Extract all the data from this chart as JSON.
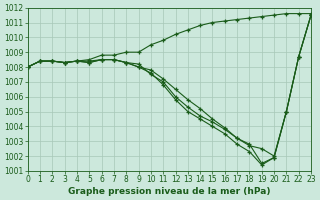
{
  "x": [
    0,
    1,
    2,
    3,
    4,
    5,
    6,
    7,
    8,
    9,
    10,
    11,
    12,
    13,
    14,
    15,
    16,
    17,
    18,
    19,
    20,
    21,
    22,
    23
  ],
  "series": [
    [
      1008.0,
      1008.4,
      1008.4,
      1008.3,
      1008.4,
      1008.5,
      1008.8,
      1008.8,
      1009.0,
      1009.0,
      1009.5,
      1009.8,
      1010.2,
      1010.5,
      1010.8,
      1011.0,
      1011.1,
      1011.2,
      1011.3,
      1011.4,
      1011.5,
      1011.6,
      1011.6,
      1011.6
    ],
    [
      1008.0,
      1008.4,
      1008.4,
      1008.3,
      1008.4,
      1008.4,
      1008.5,
      1008.5,
      1008.3,
      1008.2,
      1007.5,
      1007.0,
      1006.0,
      1005.3,
      1004.7,
      1004.3,
      1003.8,
      1003.2,
      1002.7,
      1002.5,
      1002.0,
      1005.0,
      1008.7,
      1011.5
    ],
    [
      1008.0,
      1008.4,
      1008.4,
      1008.3,
      1008.4,
      1008.3,
      1008.5,
      1008.5,
      1008.3,
      1008.0,
      1007.8,
      1007.2,
      1006.5,
      1005.8,
      1005.2,
      1004.5,
      1003.9,
      1003.2,
      1002.8,
      1001.5,
      1001.9,
      1005.0,
      1008.7,
      1011.5
    ],
    [
      1008.0,
      1008.4,
      1008.4,
      1008.3,
      1008.4,
      1008.3,
      1008.5,
      1008.5,
      1008.3,
      1008.0,
      1007.6,
      1006.8,
      1005.8,
      1005.0,
      1004.5,
      1004.0,
      1003.5,
      1002.8,
      1002.3,
      1001.4,
      1001.9,
      1005.0,
      1008.7,
      1011.5
    ]
  ],
  "line_color": "#1a5c1a",
  "bg_color": "#cce8dc",
  "grid_color": "#a8c8b8",
  "xlim": [
    0,
    23
  ],
  "ylim": [
    1001,
    1012
  ],
  "yticks": [
    1001,
    1002,
    1003,
    1004,
    1005,
    1006,
    1007,
    1008,
    1009,
    1010,
    1011,
    1012
  ],
  "xticks": [
    0,
    1,
    2,
    3,
    4,
    5,
    6,
    7,
    8,
    9,
    10,
    11,
    12,
    13,
    14,
    15,
    16,
    17,
    18,
    19,
    20,
    21,
    22,
    23
  ],
  "xlabel": "Graphe pression niveau de la mer (hPa)",
  "label_fontsize": 6.5,
  "tick_fontsize": 5.5
}
